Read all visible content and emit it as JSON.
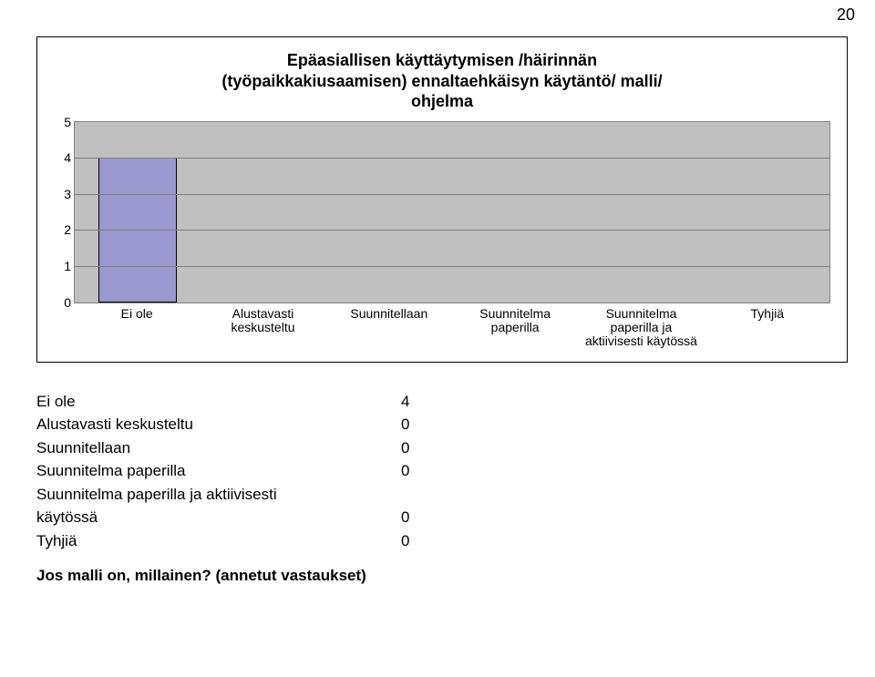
{
  "page_number": "20",
  "chart": {
    "type": "bar",
    "title_lines": [
      "Epäasiallisen käyttäytymisen /häirinnän",
      "(työpaikkakiusaamisen) ennaltaehkäisyn käytäntö/ malli/",
      "ohjelma"
    ],
    "categories": [
      "Ei ole",
      "Alustavasti keskusteltu",
      "Suunnitellaan",
      "Suunnitelma paperilla",
      "Suunnitelma paperilla ja aktiivisesti käytössä",
      "Tyhjiä"
    ],
    "values": [
      4,
      0,
      0,
      0,
      0,
      0
    ],
    "bar_fill": "#9999cf",
    "ymin": 0,
    "ymax": 5,
    "ystep": 1,
    "plot_bg": "#c0c0c0",
    "grid_color": "#808080",
    "axis_fontsize": 14,
    "title_fontsize": 18
  },
  "table": {
    "rows": [
      {
        "label": "Ei ole",
        "value": "4"
      },
      {
        "label": "Alustavasti keskusteltu",
        "value": "0"
      },
      {
        "label": "Suunnitellaan",
        "value": "0"
      },
      {
        "label": "Suunnitelma paperilla",
        "value": "0"
      },
      {
        "label": "Suunnitelma paperilla ja aktiivisesti\nkäytössä",
        "value": "0"
      },
      {
        "label": "Tyhjiä",
        "value": "0"
      }
    ]
  },
  "question": "Jos malli on, millainen? (annetut vastaukset)"
}
